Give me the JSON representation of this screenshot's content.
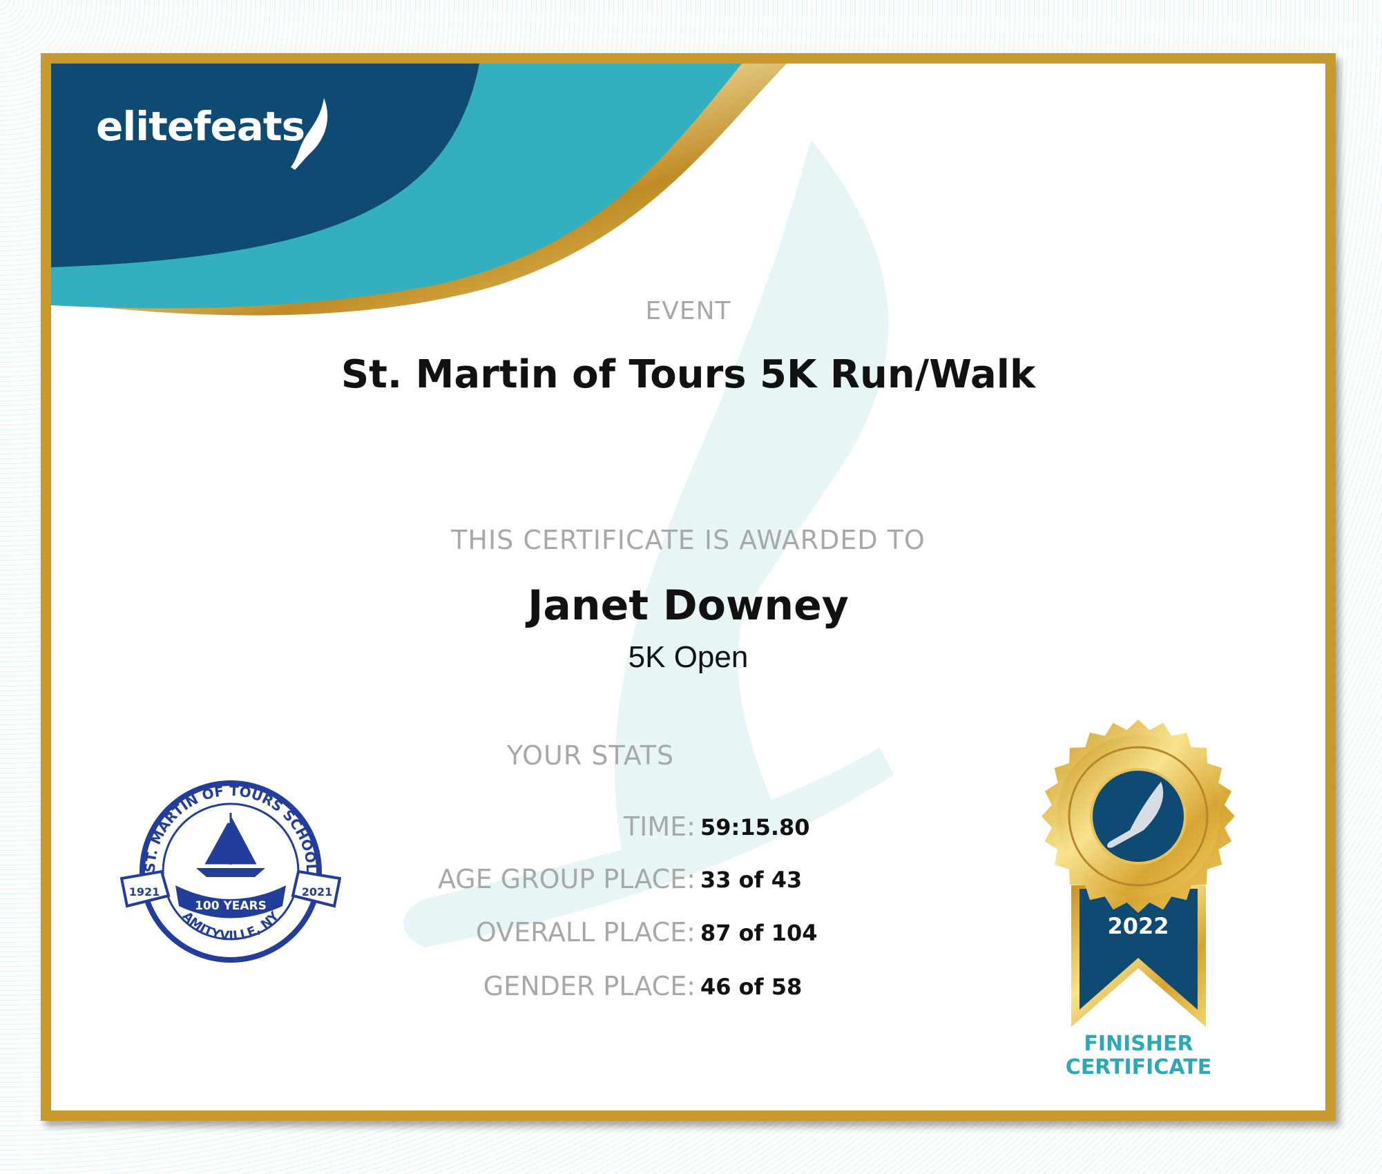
{
  "brand": {
    "logo_text": "elitefeats"
  },
  "event": {
    "label": "EVENT",
    "name": "St. Martin of Tours 5K Run/Walk"
  },
  "award": {
    "label": "THIS CERTIFICATE IS AWARDED TO",
    "name": "Janet Downey",
    "division": "5K Open"
  },
  "stats": {
    "label": "YOUR STATS",
    "rows": [
      {
        "label": "TIME:",
        "value": "59:15.80"
      },
      {
        "label": "AGE GROUP PLACE:",
        "value": "33 of 43"
      },
      {
        "label": "OVERALL PLACE:",
        "value": "87 of 104"
      },
      {
        "label": "GENDER PLACE:",
        "value": "46 of 58"
      }
    ]
  },
  "seal": {
    "top_text": "ST. MARTIN OF TOURS SCHOOL",
    "left_year": "1921",
    "right_year": "2021",
    "banner": "100 YEARS",
    "bottom_text": "AMITYVILLE, NY"
  },
  "medal": {
    "year": "2022",
    "caption_line1": "FINISHER",
    "caption_line2": "CERTIFICATE"
  },
  "colors": {
    "navy": "#0e4a72",
    "teal": "#33afbf",
    "gold": "#c9992c",
    "label_gray": "#a8a8a8",
    "seal_blue": "#233e9a"
  }
}
